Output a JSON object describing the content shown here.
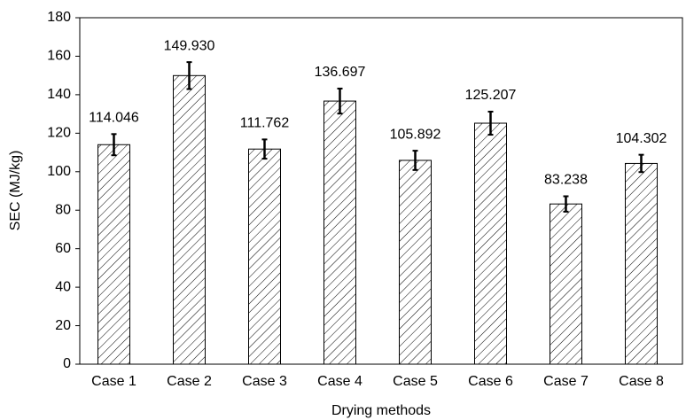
{
  "chart_data": {
    "type": "bar",
    "xlabel": "Drying methods",
    "ylabel": "SEC (MJ/kg)",
    "categories": [
      "Case 1",
      "Case 2",
      "Case 3",
      "Case 4",
      "Case 5",
      "Case 6",
      "Case 7",
      "Case 8"
    ],
    "values": [
      114.046,
      149.93,
      111.762,
      136.697,
      105.892,
      125.207,
      83.238,
      104.302
    ],
    "value_labels": [
      "114.046",
      "149.930",
      "111.762",
      "136.697",
      "105.892",
      "125.207",
      "83.238",
      "104.302"
    ],
    "errors": [
      5.5,
      7,
      5,
      6.5,
      5,
      6,
      4,
      4.5
    ],
    "color": "#000000",
    "ylim": [
      0,
      180
    ],
    "yticks": [
      0,
      20,
      40,
      60,
      80,
      100,
      120,
      140,
      160,
      180
    ]
  }
}
